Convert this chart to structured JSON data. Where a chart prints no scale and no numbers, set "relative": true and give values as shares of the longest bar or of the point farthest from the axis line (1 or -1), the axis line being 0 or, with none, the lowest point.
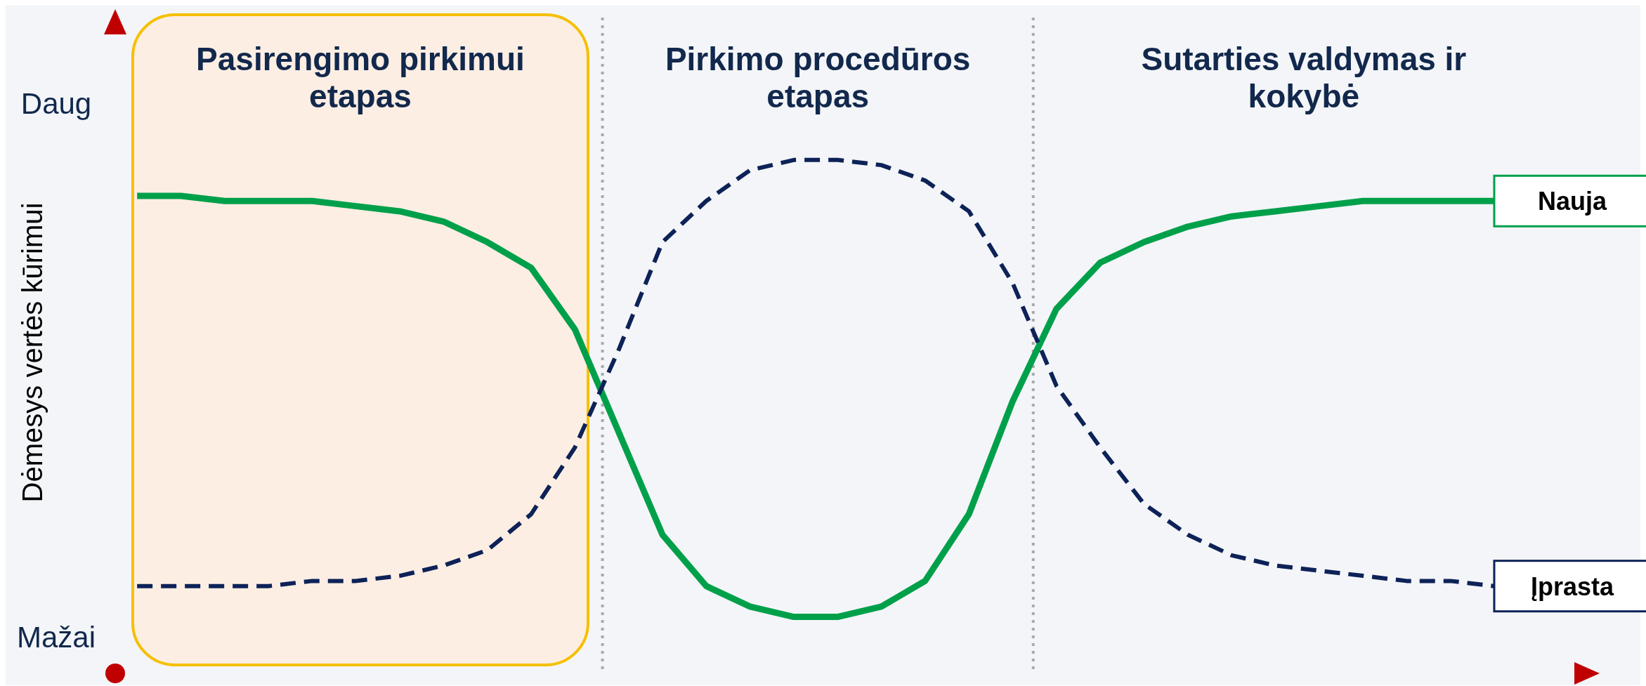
{
  "chart_data": {
    "type": "line",
    "relative": true,
    "ylabel": "Dėmesys vertės kūrimui",
    "annotations": [
      "Daug",
      "Mažai",
      "Pasirengimo pirkimui etapas",
      "Pirkimo procedūros etapas",
      "Sutarties valdymas ir kokybė"
    ],
    "categories": [
      null,
      null,
      null,
      null,
      null,
      null,
      null,
      null,
      null,
      null,
      null,
      null,
      null,
      null,
      null,
      null,
      null,
      null,
      null,
      null,
      null,
      null,
      null,
      null,
      null,
      null,
      null,
      null,
      null,
      null,
      null,
      null
    ],
    "series": [
      {
        "name": "Nauja",
        "color": "#00a04a",
        "line_style": "solid",
        "values": [
          0.93,
          0.93,
          0.92,
          0.92,
          0.92,
          0.91,
          0.9,
          0.88,
          0.84,
          0.79,
          0.67,
          0.47,
          0.27,
          0.17,
          0.13,
          0.11,
          0.11,
          0.13,
          0.18,
          0.31,
          0.53,
          0.71,
          0.8,
          0.84,
          0.87,
          0.89,
          0.9,
          0.91,
          0.92,
          0.92,
          0.92,
          0.92
        ]
      },
      {
        "name": "Įprasta",
        "color": "#0d2257",
        "line_style": "dashed",
        "values": [
          0.17,
          0.17,
          0.17,
          0.17,
          0.18,
          0.18,
          0.19,
          0.21,
          0.24,
          0.31,
          0.44,
          0.63,
          0.84,
          0.92,
          0.98,
          1,
          1,
          0.99,
          0.96,
          0.9,
          0.76,
          0.56,
          0.44,
          0.33,
          0.27,
          0.23,
          0.21,
          0.2,
          0.19,
          0.18,
          0.18,
          0.17
        ]
      }
    ]
  }
}
